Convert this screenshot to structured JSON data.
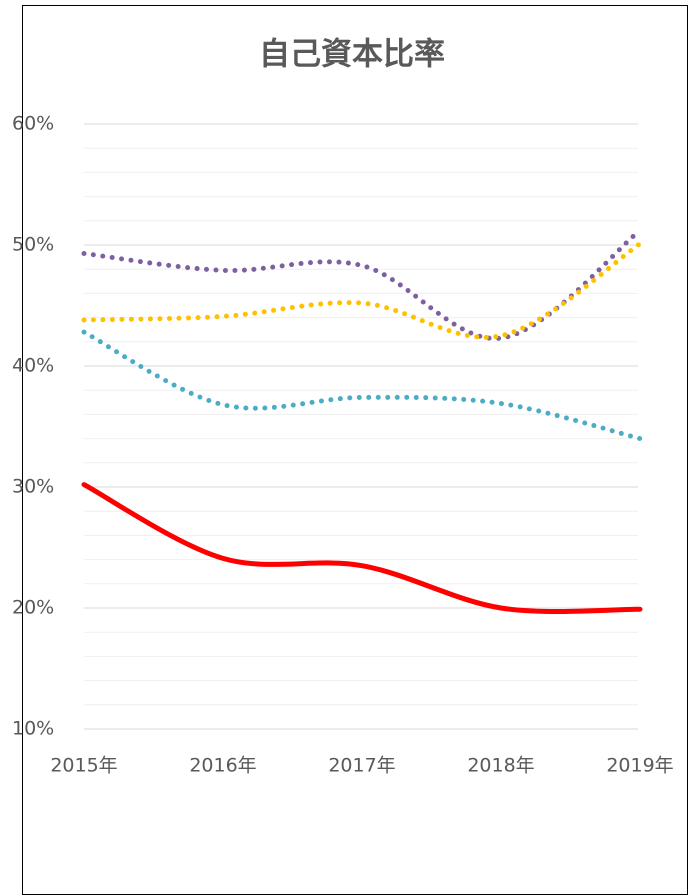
{
  "chart_data": {
    "type": "line",
    "title": "自己資本比率",
    "categories": [
      "2015年",
      "2016年",
      "2017年",
      "2018年",
      "2019年"
    ],
    "series": [
      {
        "color": "#7e60a0",
        "dash": "dotted",
        "values": [
          49.3,
          47.9,
          48.3,
          42.3,
          51.2
        ]
      },
      {
        "color": "#ffc000",
        "dash": "dotted",
        "values": [
          43.8,
          44.1,
          45.2,
          42.5,
          50.1
        ]
      },
      {
        "color": "#4bacc6",
        "dash": "dotted",
        "values": [
          42.8,
          36.8,
          37.4,
          36.9,
          34.0
        ]
      },
      {
        "color": "#ff0000",
        "dash": "solid",
        "values": [
          30.2,
          24.1,
          23.5,
          20.0,
          19.9
        ]
      }
    ],
    "ylim": [
      10,
      60
    ],
    "yticks": [
      {
        "value": 10,
        "label": "10%"
      },
      {
        "value": 20,
        "label": "20%"
      },
      {
        "value": 30,
        "label": "30%"
      },
      {
        "value": 40,
        "label": "40%"
      },
      {
        "value": 50,
        "label": "50%"
      },
      {
        "value": 60,
        "label": "60%"
      }
    ],
    "minor_yticks": [
      12,
      14,
      16,
      18,
      22,
      24,
      26,
      28,
      32,
      34,
      36,
      38,
      42,
      44,
      46,
      48,
      52,
      54,
      56,
      58
    ],
    "grid": true,
    "smooth": true
  }
}
